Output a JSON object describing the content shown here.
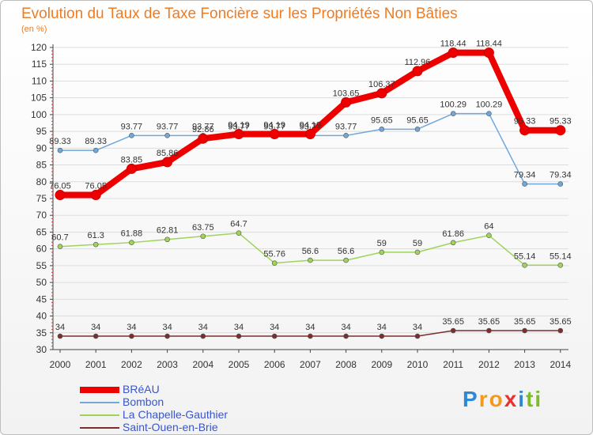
{
  "title": "Evolution du Taux de Taxe Foncière sur les Propriétés Non Bâties",
  "unit_label": "(en %)",
  "logo": {
    "letters": [
      "P",
      "r",
      "o",
      "x",
      "i",
      "t",
      "i"
    ],
    "colors": [
      "#2e88d6",
      "#f39a1e",
      "#f39a1e",
      "#e8322c",
      "#2e88d6",
      "#7cbc2a",
      "#7cbc2a"
    ]
  },
  "chart_data": {
    "type": "line",
    "title": "Evolution du Taux de Taxe Foncière sur les Propriétés Non Bâties",
    "ylabel": "(en %)",
    "xlabel": "",
    "ylim": [
      30,
      120
    ],
    "yticks": [
      30,
      35,
      40,
      45,
      50,
      55,
      60,
      65,
      70,
      75,
      80,
      85,
      90,
      95,
      100,
      105,
      110,
      115,
      120
    ],
    "categories": [
      "2000",
      "2001",
      "2002",
      "2003",
      "2004",
      "2005",
      "2006",
      "2007",
      "2008",
      "2009",
      "2010",
      "2011",
      "2012",
      "2013",
      "2014"
    ],
    "grid": "horizontal",
    "legend_position": "bottom-left",
    "series": [
      {
        "name": "BRéAU",
        "color": "#ee0000",
        "values": [
          76.05,
          76.05,
          83.85,
          85.86,
          92.86,
          94.19,
          94.19,
          94.19,
          103.65,
          106.37,
          112.96,
          118.44,
          118.44,
          95.33,
          95.33
        ],
        "labels": [
          "76.05",
          "76.05",
          "83.85",
          "85.86",
          "92.86",
          "94.19",
          "94.19",
          "94.19",
          "103.65",
          "106.37",
          "112.96",
          "118.44",
          "118.44",
          "95.33",
          "95.33"
        ]
      },
      {
        "name": "Bombon",
        "color": "#6fa8dc",
        "values": [
          89.33,
          89.33,
          93.77,
          93.77,
          93.77,
          93.77,
          93.77,
          93.77,
          93.77,
          95.65,
          95.65,
          100.29,
          100.29,
          79.34,
          79.34
        ],
        "labels": [
          "89.33",
          "89.33",
          "93.77",
          "93.77",
          "93.77",
          "93.77",
          "93.77",
          "93.77",
          "93.77",
          "95.65",
          "95.65",
          "100.29",
          "100.29",
          "79.34",
          "79.34"
        ]
      },
      {
        "name": "La Chapelle-Gauthier",
        "color": "#9fd35a",
        "values": [
          60.7,
          61.3,
          61.88,
          62.81,
          63.75,
          64.7,
          55.76,
          56.6,
          56.6,
          59,
          59,
          61.86,
          64,
          55.14,
          55.14
        ],
        "labels": [
          "60.7",
          "61.3",
          "61.88",
          "62.81",
          "63.75",
          "64.7",
          "55.76",
          "56.6",
          "56.6",
          "59",
          "59",
          "61.86",
          "64",
          "55.14",
          "55.14"
        ]
      },
      {
        "name": "Saint-Ouen-en-Brie",
        "color": "#7a2e2e",
        "values": [
          34,
          34,
          34,
          34,
          34,
          34,
          34,
          34,
          34,
          34,
          34,
          35.65,
          35.65,
          35.65,
          35.65
        ],
        "labels": [
          "34",
          "34",
          "34",
          "34",
          "34",
          "34",
          "34",
          "34",
          "34",
          "34",
          "34",
          "35.65",
          "35.65",
          "35.65",
          "35.65"
        ]
      }
    ]
  }
}
